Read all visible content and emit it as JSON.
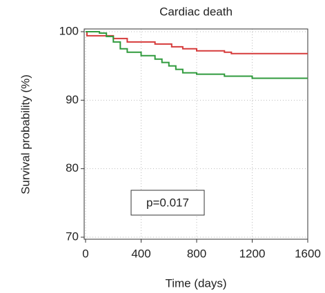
{
  "chart_data": {
    "type": "line",
    "step": true,
    "title": "Cardiac death",
    "xlabel": "Time (days)",
    "ylabel": "Survival probability (%)",
    "annotation": "p=0.017",
    "xlim": [
      -10,
      1600
    ],
    "ylim": [
      69.7,
      100.4
    ],
    "xticks": [
      0,
      400,
      800,
      1200,
      1600
    ],
    "yticks": [
      70,
      80,
      90,
      100
    ],
    "grid": true,
    "series": [
      {
        "color": "#d63a3a",
        "x": [
          0,
          10,
          200,
          300,
          500,
          620,
          700,
          800,
          1000,
          1050,
          1600
        ],
        "values": [
          100,
          99.4,
          99,
          98.5,
          98.2,
          97.8,
          97.5,
          97.2,
          97,
          96.8,
          96.8
        ]
      },
      {
        "color": "#2f9a3c",
        "x": [
          0,
          100,
          150,
          200,
          250,
          300,
          400,
          500,
          550,
          600,
          650,
          700,
          800,
          1000,
          1200,
          1600
        ],
        "values": [
          100,
          99.8,
          99.3,
          98.5,
          97.5,
          97,
          96.5,
          96,
          95.5,
          95,
          94.5,
          94,
          93.8,
          93.5,
          93.2,
          93.2
        ]
      }
    ]
  }
}
